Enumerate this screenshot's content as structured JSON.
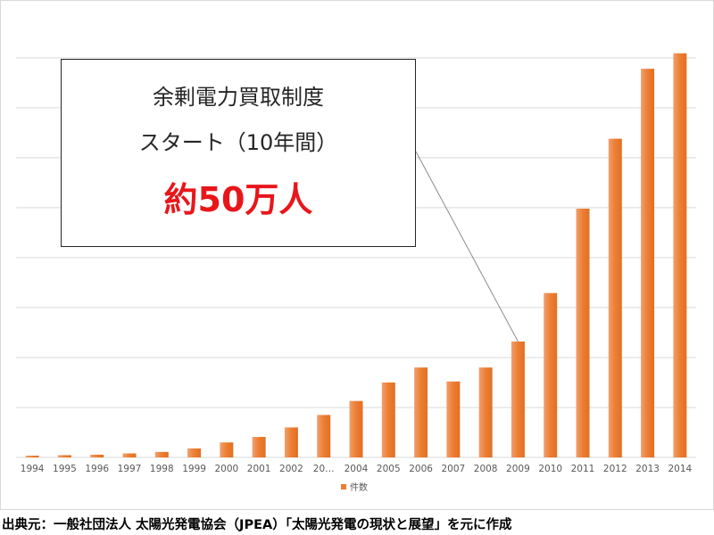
{
  "chart_data": {
    "type": "bar",
    "categories": [
      "1994",
      "1995",
      "1996",
      "1997",
      "1998",
      "1999",
      "2000",
      "2001",
      "2002",
      "20…",
      "2004",
      "2005",
      "2006",
      "2007",
      "2008",
      "2009",
      "2010",
      "2011",
      "2012",
      "2013",
      "2014"
    ],
    "series": [
      {
        "name": "件数",
        "values": [
          0.35,
          0.45,
          0.55,
          0.8,
          1.1,
          1.8,
          3.0,
          4.1,
          6.0,
          8.5,
          11.3,
          15.0,
          18.0,
          15.2,
          18.0,
          23.2,
          32.9,
          49.8,
          63.8,
          77.8,
          80.9
        ]
      }
    ],
    "ylim": [
      0,
      88
    ],
    "y_grid_step": 10,
    "grid": true,
    "show_y_tick_labels": false,
    "legend_position": "bottom",
    "bar_color": "#ed7d31"
  },
  "callout": {
    "line1": "余剰電力買取制度",
    "line2": "スタート（10年間）",
    "line3": "約50万人",
    "pointer_category": "2009"
  },
  "source_note": "出典元：一般社団法人 太陽光発電協会（JPEA）「太陽光発電の現状と展望」を元に作成"
}
